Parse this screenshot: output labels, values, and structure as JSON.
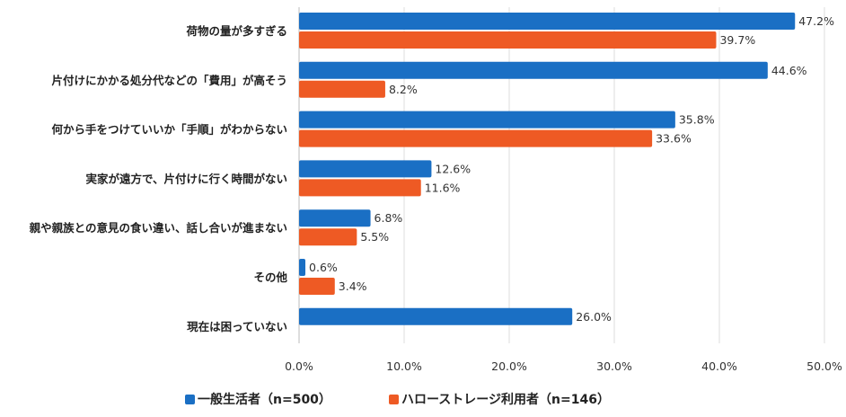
{
  "chart_data": {
    "type": "bar",
    "orientation": "horizontal",
    "categories": [
      "荷物の量が多すぎる",
      "片付けにかかる処分代などの「費用」が高そう",
      "何から手をつけていいか「手順」がわからない",
      "実家が遠方で、片付けに行く時間がない",
      "親や親族との意見の食い違い、話し合いが進まない",
      "その他",
      "現在は困っていない"
    ],
    "series": [
      {
        "name": "一般生活者（n=500）",
        "color": "#1a6fc4",
        "values": [
          47.2,
          44.6,
          35.8,
          12.6,
          6.8,
          0.6,
          26.0
        ],
        "labels": [
          "47.2%",
          "44.6%",
          "35.8%",
          "12.6%",
          "6.8%",
          "0.6%",
          "26.0%"
        ]
      },
      {
        "name": "ハローストレージ利用者（n=146）",
        "color": "#ee5a24",
        "values": [
          39.7,
          8.2,
          33.6,
          11.6,
          5.5,
          3.4,
          null
        ],
        "labels": [
          "39.7%",
          "8.2%",
          "33.6%",
          "11.6%",
          "5.5%",
          "3.4%",
          null
        ]
      }
    ],
    "highlight_color": "#e8232b",
    "highlight_labels": [
      {
        "series": 0,
        "index": 1
      },
      {
        "series": 1,
        "index": 1
      }
    ],
    "xlim": [
      0,
      50
    ],
    "xticks": [
      0,
      10,
      20,
      30,
      40,
      50
    ],
    "xtick_labels": [
      "0.0%",
      "10.0%",
      "20.0%",
      "30.0%",
      "40.0%",
      "50.0%"
    ],
    "grid": true,
    "legend_position": "bottom",
    "title": "",
    "xlabel": "",
    "ylabel": ""
  }
}
